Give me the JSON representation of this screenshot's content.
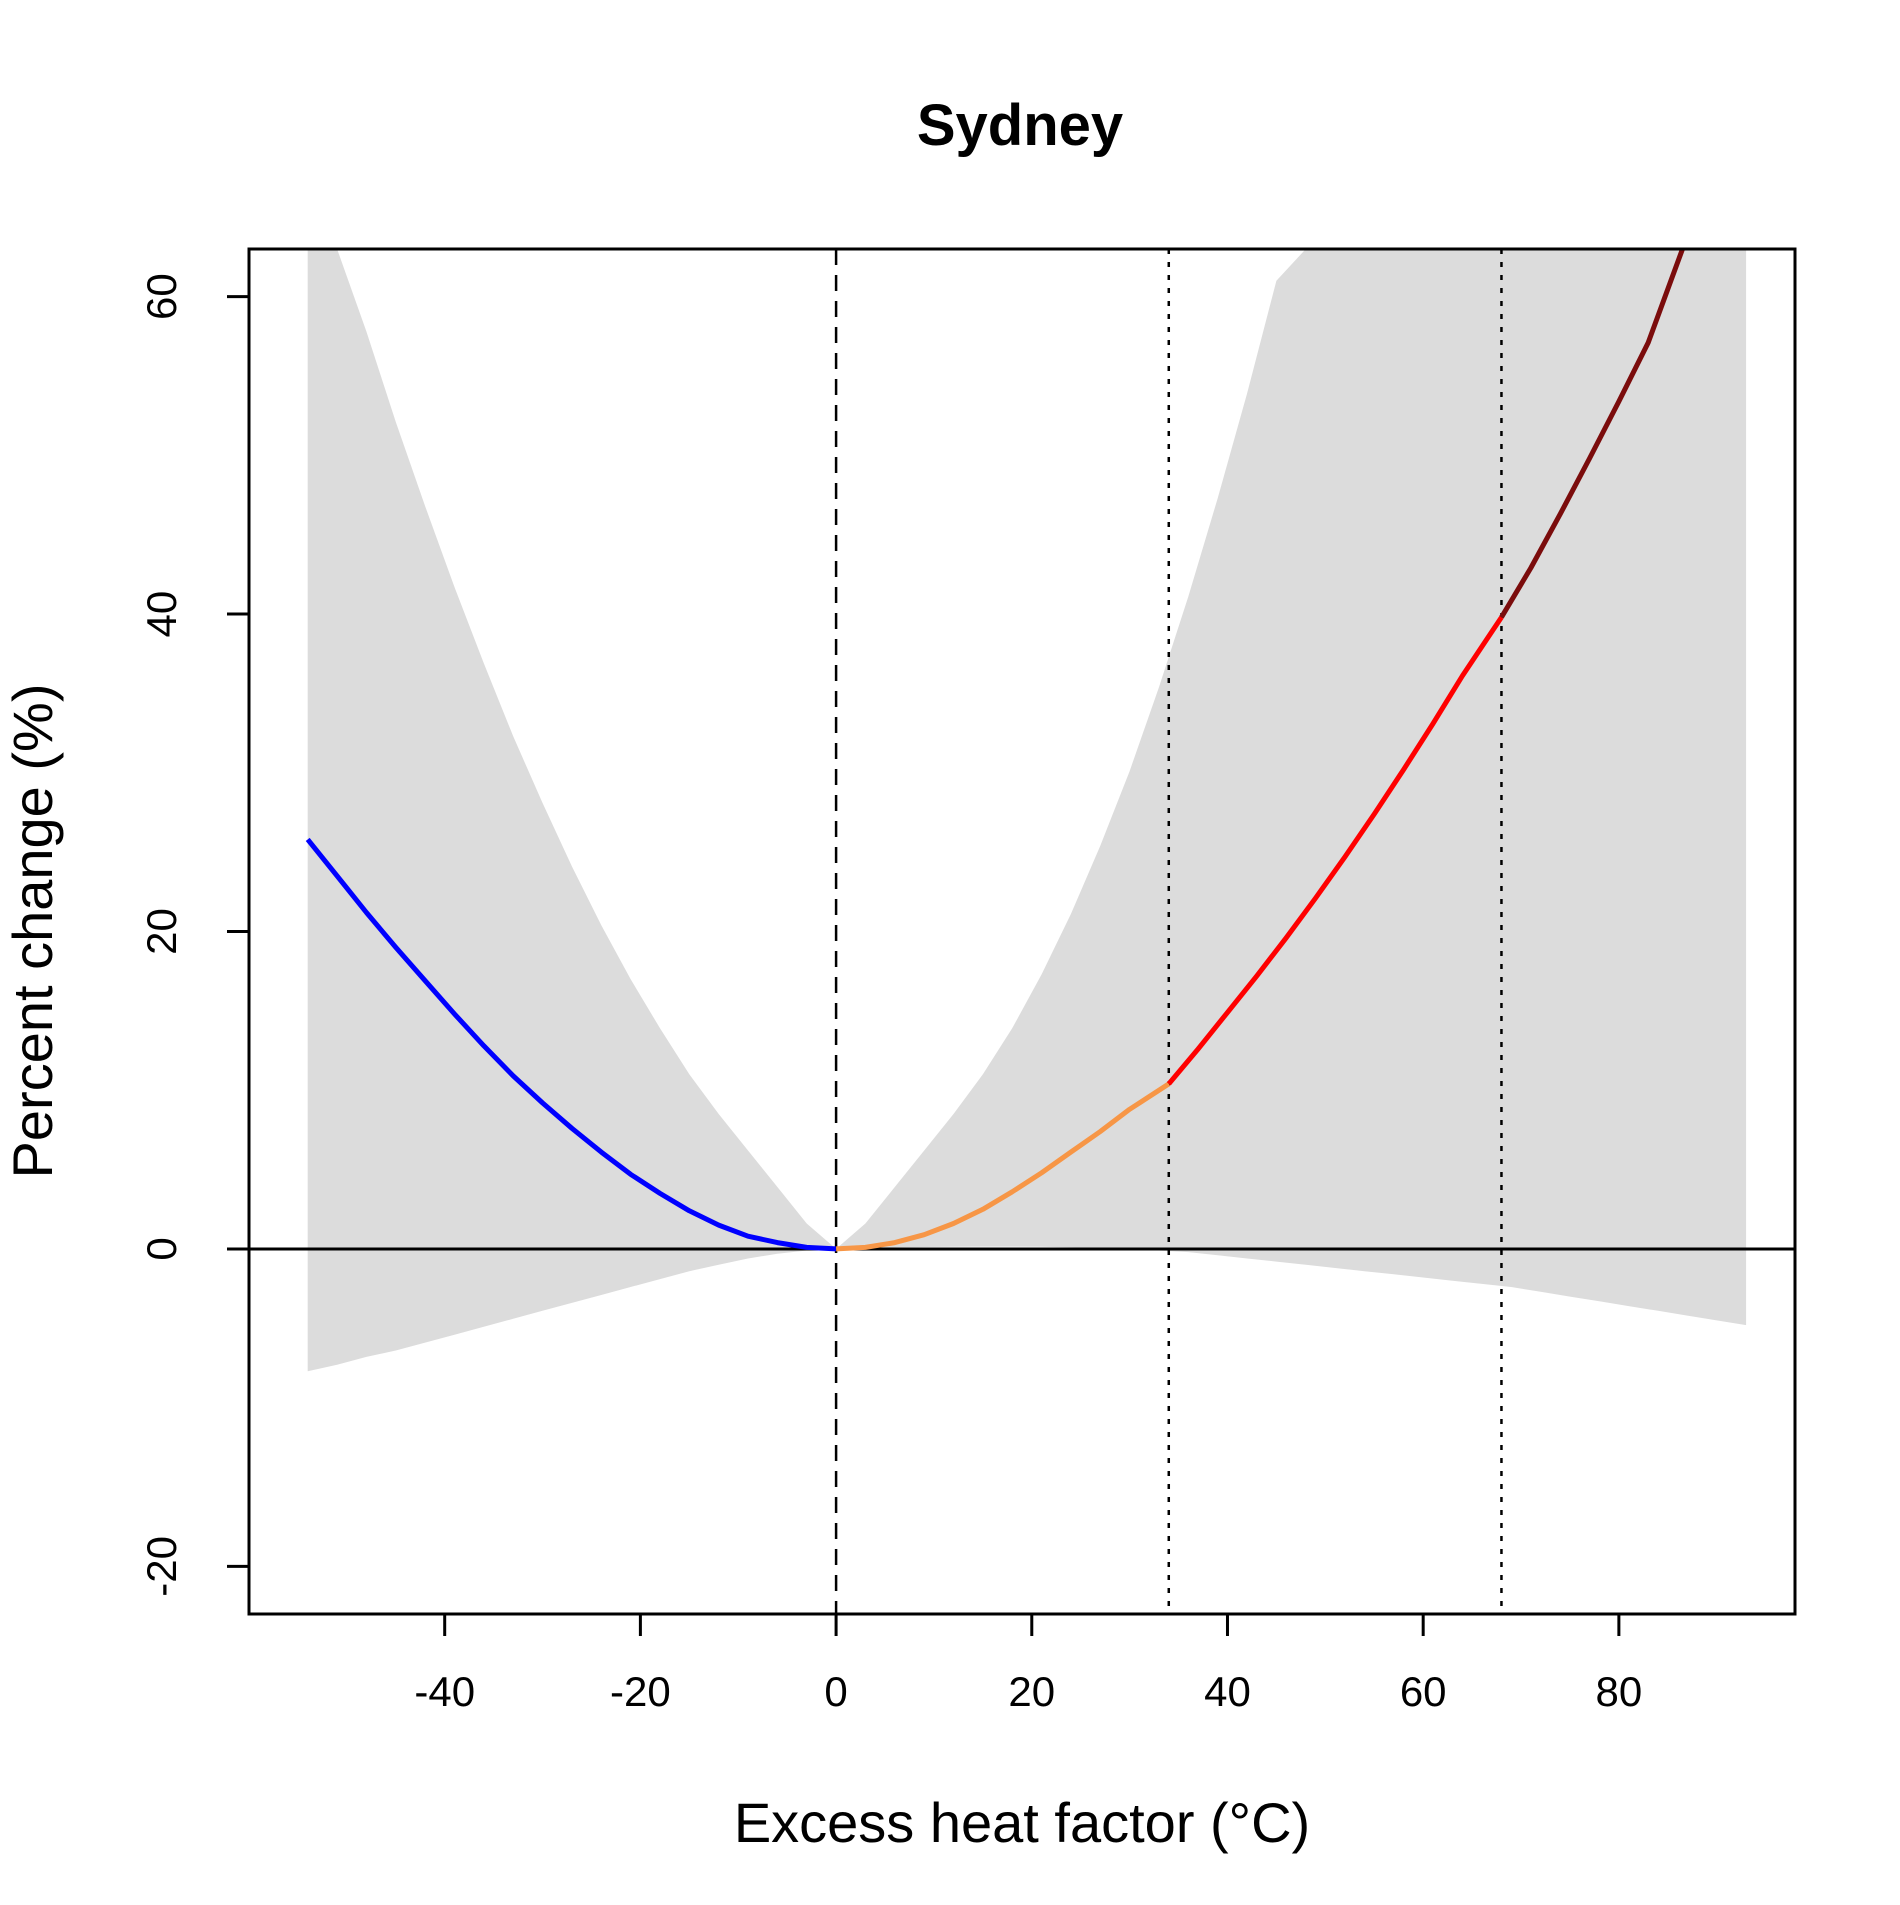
{
  "chart_data": {
    "type": "line",
    "title": "Sydney",
    "xlabel": "Excess heat factor (°C)",
    "ylabel": "Percent change (%)",
    "xlim": [
      -60,
      98
    ],
    "ylim": [
      -23,
      63
    ],
    "x_ticks": [
      -40,
      -20,
      0,
      20,
      40,
      60,
      80
    ],
    "y_ticks": [
      -20,
      0,
      20,
      40,
      60
    ],
    "x_tick_labels": [
      "-40",
      "-20",
      "0",
      "20",
      "40",
      "60",
      "80"
    ],
    "y_tick_labels": [
      "-20",
      "0",
      "20",
      "40",
      "60"
    ],
    "grid": false,
    "reference_lines": [
      {
        "axis": "y",
        "value": 0,
        "style": "solid"
      },
      {
        "axis": "x",
        "value": 0,
        "style": "dashed"
      },
      {
        "axis": "x",
        "value": 34,
        "style": "dotted"
      },
      {
        "axis": "x",
        "value": 68,
        "style": "dotted"
      }
    ],
    "confidence_band": {
      "color": "#dcdcdc",
      "x": [
        -54,
        -51,
        -48,
        -45,
        -42,
        -39,
        -36,
        -33,
        -30,
        -27,
        -24,
        -21,
        -18,
        -15,
        -12,
        -9,
        -6,
        -3,
        0,
        3,
        6,
        9,
        12,
        15,
        18,
        21,
        24,
        27,
        30,
        33,
        36,
        39,
        42,
        45,
        48,
        51,
        54,
        57,
        60,
        63,
        66,
        69,
        72,
        75,
        78,
        81,
        84,
        87,
        90,
        93
      ],
      "upper": [
        63,
        63,
        57.8,
        52.1,
        46.8,
        41.7,
        36.9,
        32.3,
        28.1,
        24.1,
        20.4,
        17,
        13.9,
        11,
        8.5,
        6.2,
        3.9,
        1.6,
        0,
        1.6,
        3.9,
        6.2,
        8.5,
        11,
        13.9,
        17.3,
        21.1,
        25.4,
        30.1,
        35.4,
        41.1,
        47.3,
        53.9,
        61,
        63,
        63,
        63,
        63,
        63,
        63,
        63,
        63,
        63,
        63,
        63,
        63,
        63,
        63,
        63,
        63
      ],
      "lower": [
        -7.7,
        -7.3,
        -6.8,
        -6.4,
        -5.9,
        -5.4,
        -4.9,
        -4.4,
        -3.9,
        -3.4,
        -2.9,
        -2.4,
        -1.9,
        -1.4,
        -1,
        -0.6,
        -0.3,
        -0.1,
        0,
        0.05,
        0.1,
        0.12,
        0.14,
        0.15,
        0.15,
        0.14,
        0.1,
        0.05,
        0,
        -0.1,
        -0.2,
        -0.4,
        -0.6,
        -0.8,
        -1,
        -1.2,
        -1.4,
        -1.6,
        -1.8,
        -2,
        -2.2,
        -2.4,
        -2.7,
        -3,
        -3.3,
        -3.6,
        -3.9,
        -4.2,
        -4.5,
        -4.8
      ]
    },
    "series": [
      {
        "color": "#0000ff",
        "x": [
          -54,
          -51,
          -48,
          -45,
          -42,
          -39,
          -36,
          -33,
          -30,
          -27,
          -24,
          -21,
          -18,
          -15,
          -12,
          -9,
          -6,
          -3,
          0
        ],
        "values": [
          25.8,
          23.5,
          21.2,
          19,
          16.9,
          14.8,
          12.8,
          10.9,
          9.2,
          7.6,
          6.1,
          4.7,
          3.5,
          2.4,
          1.5,
          0.8,
          0.4,
          0.1,
          0
        ]
      },
      {
        "color": "#f79646",
        "x": [
          0,
          3,
          6,
          9,
          12,
          15,
          18,
          21,
          24,
          27,
          30,
          34
        ],
        "values": [
          0,
          0.1,
          0.4,
          0.9,
          1.6,
          2.5,
          3.6,
          4.8,
          6.1,
          7.4,
          8.8,
          10.4
        ]
      },
      {
        "color": "#ff0000",
        "x": [
          34,
          37,
          40,
          43,
          46,
          49,
          52,
          55,
          58,
          61,
          64,
          68
        ],
        "values": [
          10.4,
          12.6,
          14.9,
          17.2,
          19.6,
          22.1,
          24.7,
          27.4,
          30.2,
          33.1,
          36.1,
          39.8
        ]
      },
      {
        "color": "#7b0c0c",
        "x": [
          68,
          71,
          74,
          77,
          80,
          83,
          86.5
        ],
        "values": [
          39.8,
          42.9,
          46.3,
          49.8,
          53.4,
          57.1,
          63
        ]
      }
    ]
  }
}
